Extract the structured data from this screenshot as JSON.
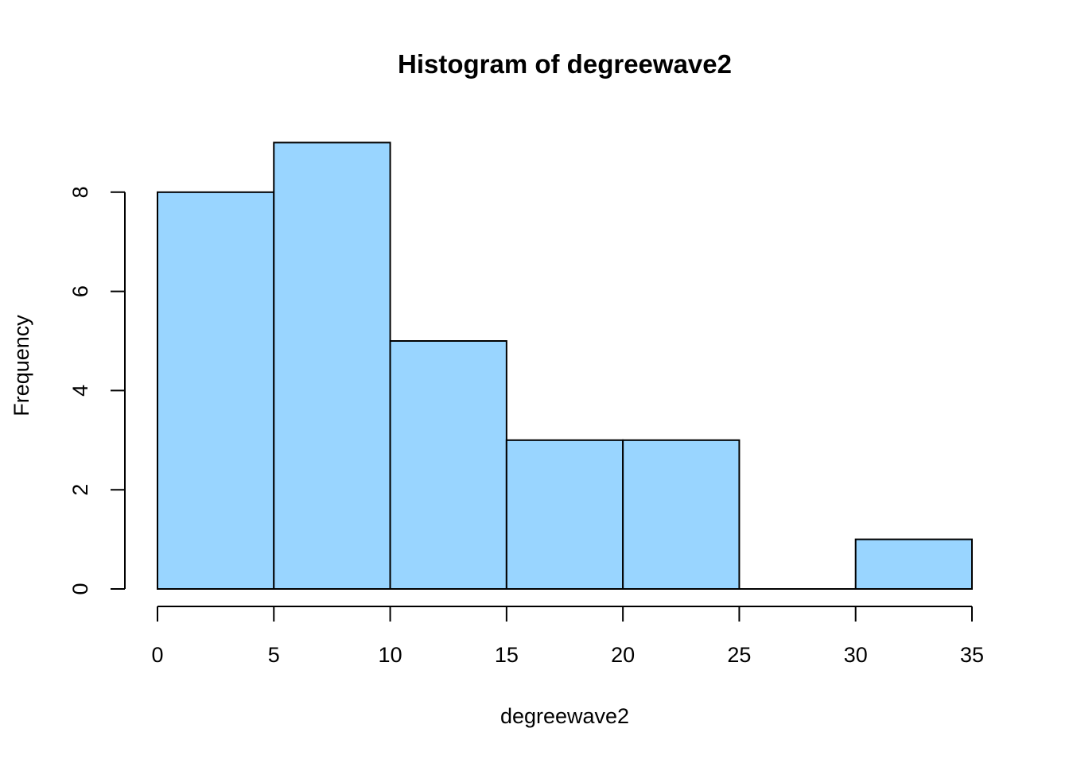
{
  "chart_data": {
    "type": "bar",
    "title": "Histogram of degreewave2",
    "xlabel": "degreewave2",
    "ylabel": "Frequency",
    "bins": [
      {
        "start": 0,
        "end": 5,
        "count": 8
      },
      {
        "start": 5,
        "end": 10,
        "count": 9
      },
      {
        "start": 10,
        "end": 15,
        "count": 5
      },
      {
        "start": 15,
        "end": 20,
        "count": 3
      },
      {
        "start": 20,
        "end": 25,
        "count": 3
      },
      {
        "start": 25,
        "end": 30,
        "count": 0
      },
      {
        "start": 30,
        "end": 35,
        "count": 1
      }
    ],
    "xticks": [
      0,
      5,
      10,
      15,
      20,
      25,
      30,
      35
    ],
    "yticks": [
      0,
      2,
      4,
      6,
      8
    ],
    "xlim": [
      0,
      35
    ],
    "ylim": [
      0,
      9
    ],
    "bar_color": "#99d5ff",
    "grid": false,
    "legend": "none"
  }
}
